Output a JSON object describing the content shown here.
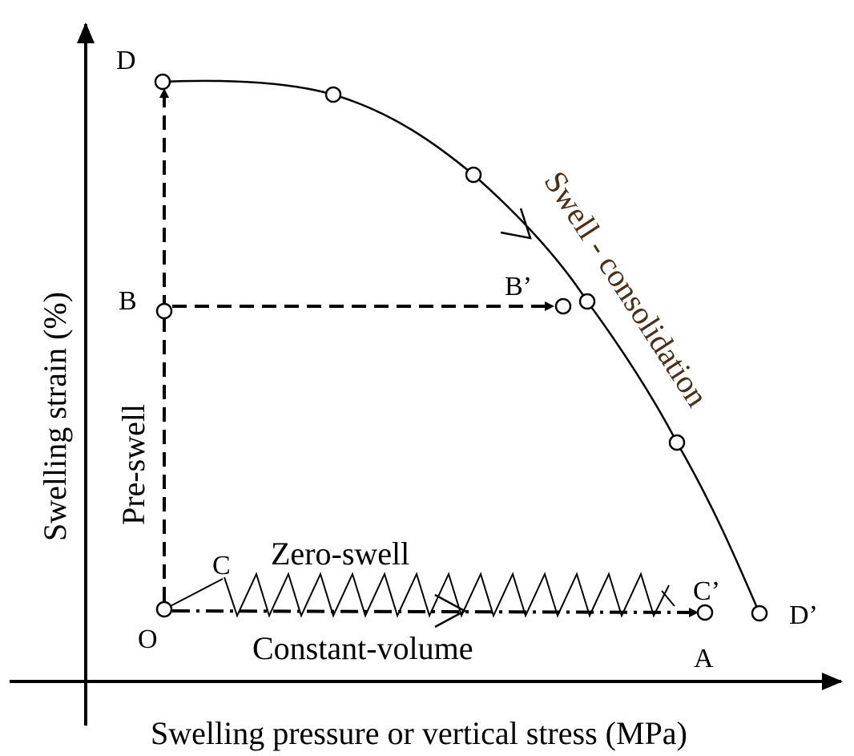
{
  "points": {
    "D": "D",
    "B": "B",
    "B_prime": "B’",
    "C": "C",
    "C_prime": "C’",
    "O": "O",
    "A": "A",
    "D_prime": "D’"
  },
  "paths": {
    "zero_swell": "Zero-swell",
    "constant_volume": "Constant-volume",
    "pre_swell": "Pre-swell",
    "swell_consolidation": "Swell - consolidation"
  },
  "axes": {
    "y_label": "Swelling strain (%)",
    "x_label": "Swelling pressure or vertical stress (MPa)"
  }
}
